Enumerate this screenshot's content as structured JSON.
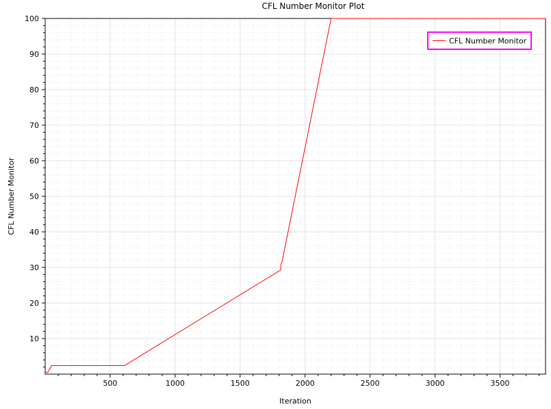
{
  "chart_data": {
    "type": "line",
    "title": "CFL Number Monitor Plot",
    "xlabel": "Iteration",
    "ylabel": "CFL Number Monitor",
    "xlim": [
      0,
      3850
    ],
    "ylim": [
      0,
      100
    ],
    "x_ticks": [
      500,
      1000,
      1500,
      2000,
      2500,
      3000,
      3500
    ],
    "y_ticks": [
      10,
      20,
      30,
      40,
      50,
      60,
      70,
      80,
      90,
      100
    ],
    "grid": true,
    "legend_position": "top-right",
    "series": [
      {
        "name": "CFL Number Monitor",
        "color": "#ff0000",
        "x": [
          1,
          20,
          50,
          600,
          610,
          1800,
          1812,
          1815,
          1822,
          2200,
          2210,
          3850
        ],
        "y": [
          0.5,
          0.5,
          2.4,
          2.4,
          2.4,
          29.0,
          29.3,
          31.0,
          31.5,
          100,
          100,
          100
        ]
      }
    ]
  }
}
